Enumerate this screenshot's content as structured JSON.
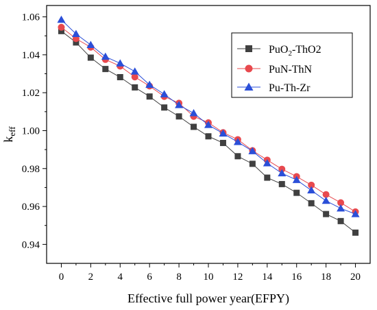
{
  "chart_data": {
    "type": "line",
    "xlabel": "Effective full power year(EFPY)",
    "ylabel_main": "k",
    "ylabel_sub": "eff",
    "xlim": [
      -1,
      21
    ],
    "ylim": [
      0.93,
      1.066
    ],
    "x_ticks": [
      0,
      2,
      4,
      6,
      8,
      10,
      12,
      14,
      16,
      18,
      20
    ],
    "x_tick_labels": [
      "0",
      "2",
      "4",
      "6",
      "8",
      "10",
      "12",
      "14",
      "16",
      "18",
      "20"
    ],
    "y_ticks": [
      0.94,
      0.96,
      0.98,
      1.0,
      1.02,
      1.04,
      1.06
    ],
    "y_tick_labels": [
      "0.94",
      "0.96",
      "0.98",
      "1.00",
      "1.02",
      "1.04",
      "1.06"
    ],
    "grid": false,
    "legend_position": "top-right",
    "x": [
      0,
      1,
      2,
      3,
      4,
      5,
      6,
      7,
      8,
      9,
      10,
      11,
      12,
      13,
      14,
      15,
      16,
      17,
      18,
      19,
      20
    ],
    "series": [
      {
        "name_main": "PuO",
        "name_sub": "2",
        "name_rest": "-ThO2",
        "marker": "square",
        "color": "#404040",
        "values": [
          1.0525,
          1.0465,
          1.0385,
          1.0325,
          1.0282,
          1.0228,
          1.018,
          1.0122,
          1.0075,
          1.002,
          0.997,
          0.9935,
          0.9865,
          0.9825,
          0.9752,
          0.9718,
          0.9672,
          0.9617,
          0.956,
          0.9523,
          0.9462
        ]
      },
      {
        "name": "PuN-ThN",
        "marker": "circle",
        "color": "#e8494e",
        "values": [
          1.0545,
          1.0485,
          1.044,
          1.0375,
          1.034,
          1.0283,
          1.0235,
          1.018,
          1.0145,
          1.0075,
          1.0042,
          0.999,
          0.9953,
          0.9895,
          0.9845,
          0.9797,
          0.9758,
          0.9713,
          0.9663,
          0.962,
          0.9572
        ]
      },
      {
        "name": "Pu-Th-Zr",
        "marker": "triangle",
        "color": "#2b4fd8",
        "values": [
          1.0585,
          1.051,
          1.0452,
          1.039,
          1.0355,
          1.0312,
          1.0242,
          1.0192,
          1.0135,
          1.0092,
          1.003,
          0.9985,
          0.994,
          0.9892,
          0.9828,
          0.9775,
          0.974,
          0.9685,
          0.963,
          0.959,
          0.956
        ]
      }
    ]
  }
}
